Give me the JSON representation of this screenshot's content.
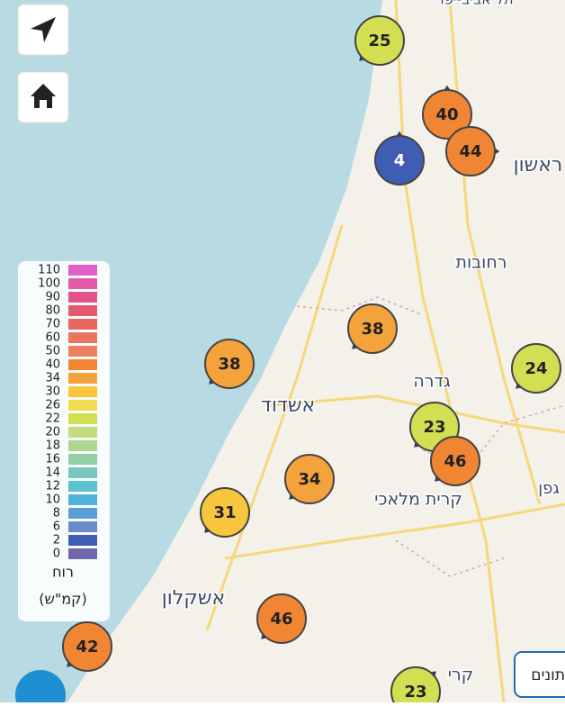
{
  "stations": [
    {
      "value": 25
    },
    {
      "value": 40
    },
    {
      "value": 44
    },
    {
      "value": 4
    },
    {
      "value": 38
    },
    {
      "value": 38
    },
    {
      "value": 24
    },
    {
      "value": 23
    },
    {
      "value": 46
    },
    {
      "value": 34
    },
    {
      "value": 31
    },
    {
      "value": 46
    },
    {
      "value": 42
    },
    {
      "value": 23
    }
  ],
  "legend": {
    "title": "רוח",
    "unit": "(קמ\"ש)",
    "items": [
      {
        "label": 110,
        "color": "#e060c8"
      },
      {
        "label": 100,
        "color": "#e35aa8"
      },
      {
        "label": 90,
        "color": "#e4558a"
      },
      {
        "label": 80,
        "color": "#e45a6e"
      },
      {
        "label": 70,
        "color": "#e8675f"
      },
      {
        "label": 60,
        "color": "#ea7460"
      },
      {
        "label": 50,
        "color": "#ed8060"
      },
      {
        "label": 40,
        "color": "#f08534"
      },
      {
        "label": 34,
        "color": "#f4a23c"
      },
      {
        "label": 30,
        "color": "#f7c63c"
      },
      {
        "label": 26,
        "color": "#f4dc50"
      },
      {
        "label": 22,
        "color": "#d2df52"
      },
      {
        "label": 20,
        "color": "#c2dc7e"
      },
      {
        "label": 18,
        "color": "#acd78f"
      },
      {
        "label": 16,
        "color": "#92cfa6"
      },
      {
        "label": 14,
        "color": "#76c8bd"
      },
      {
        "label": 12,
        "color": "#5ec1d2"
      },
      {
        "label": 10,
        "color": "#52b1dc"
      },
      {
        "label": 8,
        "color": "#5a9dd6"
      },
      {
        "label": 6,
        "color": "#6a8ac8"
      },
      {
        "label": 2,
        "color": "#3f5db3"
      },
      {
        "label": 0,
        "color": "#6e68aa"
      }
    ]
  },
  "places": [
    {
      "name": "תל אביב-יפו"
    },
    {
      "name": "ראשון"
    },
    {
      "name": "רחובות"
    },
    {
      "name": "גדרה"
    },
    {
      "name": "אשדוד"
    },
    {
      "name": "קרית מלאכי"
    },
    {
      "name": "גפן"
    },
    {
      "name": "אשקלון"
    },
    {
      "name": "קרי"
    }
  ],
  "data_button": "תונים"
}
